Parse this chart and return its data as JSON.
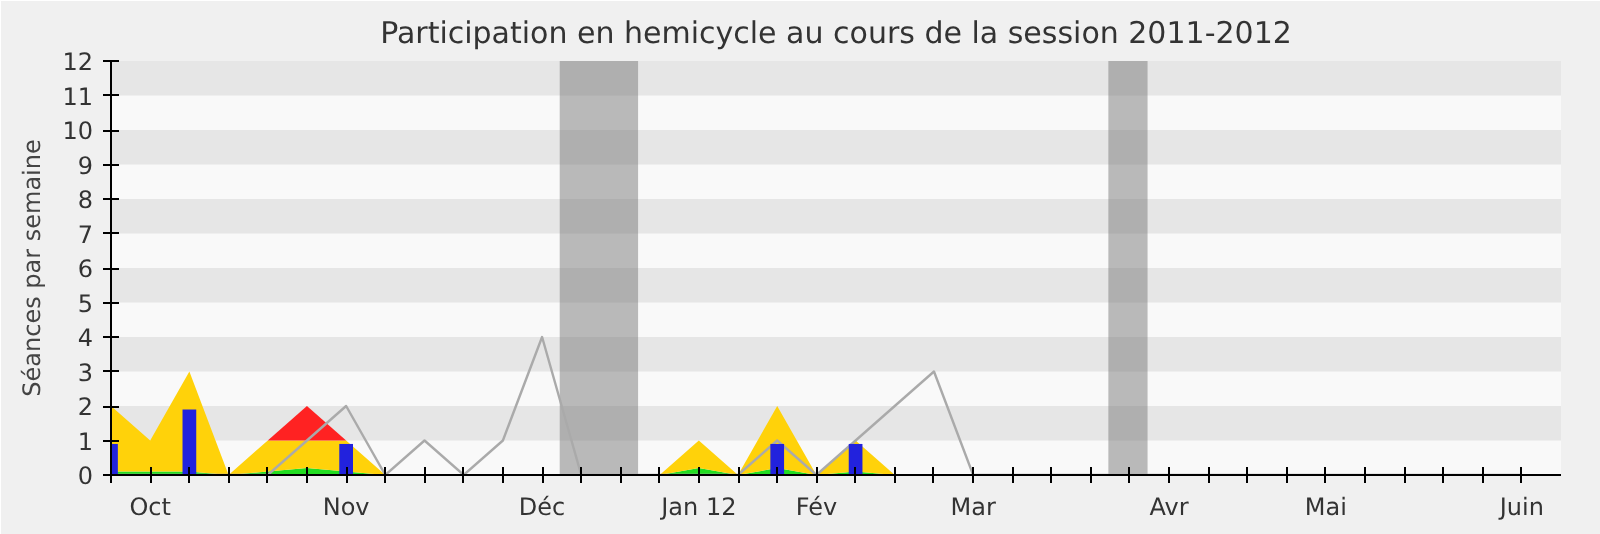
{
  "chart_data": {
    "type": "area",
    "stacked": true,
    "title": "Participation en hemicycle au cours de la session 2011-2012",
    "ylabel": "Séances par semaine",
    "categories": [
      null,
      "Oct",
      null,
      null,
      null,
      null,
      "Nov",
      null,
      null,
      null,
      null,
      "Déc",
      null,
      null,
      null,
      "Jan 12",
      null,
      null,
      "Fév",
      null,
      null,
      null,
      "Mar",
      null,
      null,
      null,
      null,
      "Avr",
      null,
      null,
      null,
      "Mai",
      null,
      null,
      null,
      null,
      "Juin"
    ],
    "series": [
      {
        "color": "#22dd22",
        "values": [
          0.1,
          0.1,
          0.1,
          0,
          0.1,
          0.2,
          0.1,
          0,
          0,
          0,
          0,
          0,
          0,
          0,
          0,
          0.2,
          0,
          0.2,
          0,
          0.1,
          0,
          0,
          0,
          0,
          0,
          0,
          0,
          0,
          0,
          0,
          0,
          0,
          0,
          0,
          0,
          0,
          0
        ]
      },
      {
        "color": "#ffd20a",
        "values": [
          1.9,
          0.9,
          2.9,
          0,
          0.9,
          0.8,
          0.9,
          0,
          0,
          0,
          0,
          0,
          0,
          0,
          0,
          0.8,
          0,
          1.8,
          0,
          0.9,
          0,
          0,
          0,
          0,
          0,
          0,
          0,
          0,
          0,
          0,
          0,
          0,
          0,
          0,
          0,
          0,
          0
        ]
      },
      {
        "color": "#ff2222",
        "values": [
          null,
          null,
          null,
          null,
          0,
          1,
          0,
          null,
          null,
          null,
          null,
          null,
          null,
          null,
          null,
          null,
          null,
          null,
          null,
          null,
          null,
          null,
          null,
          null,
          null,
          null,
          null,
          null,
          null,
          null,
          null,
          null,
          null,
          null,
          null,
          null,
          null
        ]
      },
      {
        "type": "line",
        "color": "#aaaaaa",
        "values": [
          0,
          0,
          0,
          0,
          0,
          1,
          2,
          0,
          1,
          0,
          1,
          4,
          0,
          0,
          0,
          0,
          0,
          1,
          0,
          1,
          2,
          3,
          0,
          0,
          0,
          0,
          0,
          0,
          0,
          0,
          0,
          0,
          0,
          0,
          0,
          0,
          0
        ]
      },
      {
        "type": "bar",
        "color": "#2222dd",
        "values": [
          0.9,
          0,
          1.9,
          0,
          0,
          0,
          0.9,
          0,
          0,
          0,
          0,
          0,
          0,
          0,
          0,
          0,
          0,
          0.9,
          0,
          0.9,
          0,
          0,
          0,
          0,
          0,
          0,
          0,
          0,
          0,
          0,
          0,
          0,
          0,
          0,
          0,
          0,
          0
        ]
      }
    ],
    "ylim": [
      0,
      12
    ],
    "yticks": [
      0,
      1,
      2,
      3,
      4,
      5,
      6,
      7,
      8,
      9,
      10,
      11,
      12
    ]
  }
}
